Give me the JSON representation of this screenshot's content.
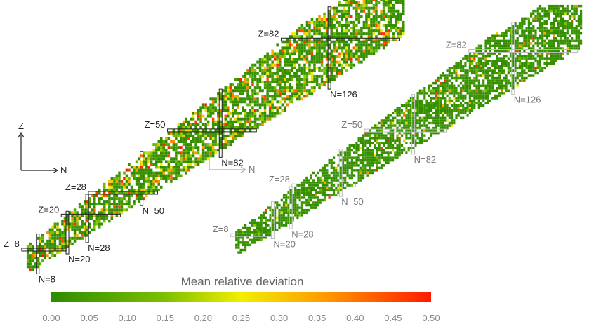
{
  "chart_data": {
    "type": "heatmap",
    "title": "",
    "axis_x_label": "N",
    "axis_y_label": "Z",
    "panels": [
      {
        "id": "left",
        "proton_magic": [
          {
            "label": "Z=8",
            "value": 8
          },
          {
            "label": "Z=20",
            "value": 20
          },
          {
            "label": "Z=28",
            "value": 28
          },
          {
            "label": "Z=50",
            "value": 50
          },
          {
            "label": "Z=82",
            "value": 82
          }
        ],
        "neutron_magic": [
          {
            "label": "N=8",
            "value": 8
          },
          {
            "label": "N=20",
            "value": 20
          },
          {
            "label": "N=28",
            "value": 28
          },
          {
            "label": "N=50",
            "value": 50
          },
          {
            "label": "N=82",
            "value": 82
          },
          {
            "label": "N=126",
            "value": 126
          }
        ],
        "deviation_profile": "high"
      },
      {
        "id": "right",
        "proton_magic": [
          {
            "label": "Z=8",
            "value": 8
          },
          {
            "label": "Z=28",
            "value": 28
          },
          {
            "label": "Z=50",
            "value": 50
          },
          {
            "label": "Z=82",
            "value": 82
          }
        ],
        "neutron_magic": [
          {
            "label": "N=20",
            "value": 20
          },
          {
            "label": "N=28",
            "value": 28
          },
          {
            "label": "N=50",
            "value": 50
          },
          {
            "label": "N=82",
            "value": 82
          },
          {
            "label": "N=126",
            "value": 126
          }
        ],
        "deviation_profile": "low"
      }
    ],
    "colorbar": {
      "title": "Mean relative deviation",
      "min": 0.0,
      "max": 0.5,
      "ticks": [
        "0.00",
        "0.05",
        "0.10",
        "0.15",
        "0.20",
        "0.25",
        "0.30",
        "0.35",
        "0.40",
        "0.45",
        "0.50"
      ],
      "colors": [
        "#2e8b00",
        "#7dc000",
        "#f2ee00",
        "#ff9a00",
        "#ff1a00"
      ]
    }
  }
}
